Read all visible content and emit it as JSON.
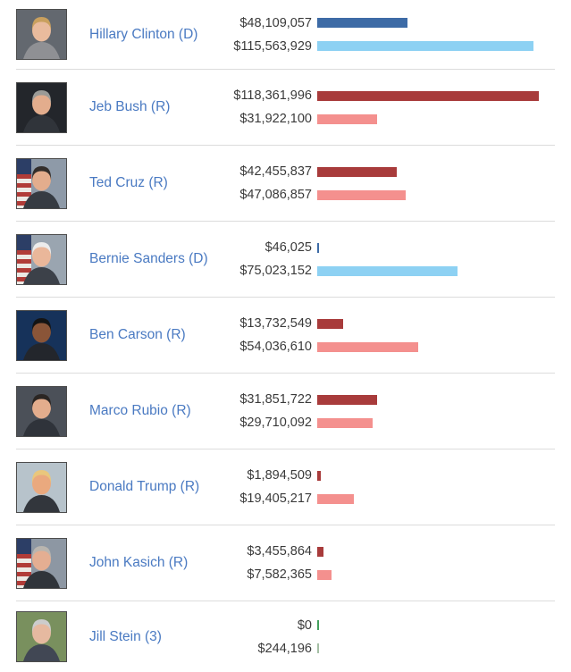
{
  "colors": {
    "link_blue": "#4a7ac2",
    "value_text": "#3a3a3a",
    "divider": "#dcdcdc",
    "dem_dark": "#3d6ba6",
    "dem_light": "#8dd1f3",
    "rep_dark": "#a83b3b",
    "rep_light": "#f4908e",
    "green_dark": "#42a05c",
    "green_light": "#a5bfa5"
  },
  "chart_data": {
    "type": "bar",
    "orientation": "horizontal",
    "categories": [
      "Hillary Clinton (D)",
      "Jeb Bush (R)",
      "Ted Cruz (R)",
      "Bernie Sanders (D)",
      "Ben Carson (R)",
      "Marco Rubio (R)",
      "Donald Trump (R)",
      "John Kasich (R)",
      "Jill Stein (3)"
    ],
    "series": [
      {
        "name": "top_bar_amount",
        "values": [
          48109057,
          118361996,
          42455837,
          46025,
          13732549,
          31851722,
          1894509,
          3455864,
          0
        ]
      },
      {
        "name": "bottom_bar_amount",
        "values": [
          115563929,
          31922100,
          47086857,
          75023152,
          54036610,
          29710092,
          19405217,
          7582365,
          244196
        ]
      }
    ],
    "title": "",
    "xlabel": "",
    "ylabel": "",
    "value_format": "USD with thousands separators",
    "color_coding": "Democrats blue (dark/light), Republicans red (dark/light), third party green (dark/light)",
    "grid": false,
    "legend": false
  },
  "money_race": {
    "rows": [
      {
        "candidate": "Hillary Clinton (D)",
        "amounts": [
          {
            "label": "$48,109,057",
            "value": 48109057,
            "color": "#3d6ba6"
          },
          {
            "label": "$115,563,929",
            "value": 115563929,
            "color": "#8dd1f3"
          }
        ],
        "avatar": {
          "bg": "#63686f",
          "hair": "#c9a05e",
          "skin": "#e9bb9d",
          "suit": "#8f9094",
          "flag": 0
        }
      },
      {
        "candidate": "Jeb Bush (R)",
        "amounts": [
          {
            "label": "$118,361,996",
            "value": 118361996,
            "color": "#a83b3b"
          },
          {
            "label": "$31,922,100",
            "value": 31922100,
            "color": "#f4908e"
          }
        ],
        "avatar": {
          "bg": "#23262b",
          "hair": "#9b9b97",
          "skin": "#e3ad8d",
          "suit": "#30343a",
          "flag": 0
        }
      },
      {
        "candidate": "Ted Cruz (R)",
        "amounts": [
          {
            "label": "$42,455,837",
            "value": 42455837,
            "color": "#a83b3b"
          },
          {
            "label": "$47,086,857",
            "value": 47086857,
            "color": "#f4908e"
          }
        ],
        "avatar": {
          "bg": "#8e9aa8",
          "hair": "#332e2b",
          "skin": "#e3ad8d",
          "suit": "#363b42",
          "flag": 1
        }
      },
      {
        "candidate": "Bernie Sanders (D)",
        "amounts": [
          {
            "label": "$46,025",
            "value": 46025,
            "color": "#3d6ba6"
          },
          {
            "label": "$75,023,152",
            "value": 75023152,
            "color": "#8dd1f3"
          }
        ],
        "avatar": {
          "bg": "#9aa5b0",
          "hair": "#ececec",
          "skin": "#eab79a",
          "suit": "#3c4149",
          "flag": 1
        }
      },
      {
        "candidate": "Ben Carson (R)",
        "amounts": [
          {
            "label": "$13,732,549",
            "value": 13732549,
            "color": "#a83b3b"
          },
          {
            "label": "$54,036,610",
            "value": 54036610,
            "color": "#f4908e"
          }
        ],
        "avatar": {
          "bg": "#16325a",
          "hair": "#141414",
          "skin": "#8a5538",
          "suit": "#23262c",
          "flag": 0
        }
      },
      {
        "candidate": "Marco Rubio (R)",
        "amounts": [
          {
            "label": "$31,851,722",
            "value": 31851722,
            "color": "#a83b3b"
          },
          {
            "label": "$29,710,092",
            "value": 29710092,
            "color": "#f4908e"
          }
        ],
        "avatar": {
          "bg": "#4b5058",
          "hair": "#2b2623",
          "skin": "#e3ad8d",
          "suit": "#2f333a",
          "flag": 0
        }
      },
      {
        "candidate": "Donald Trump (R)",
        "amounts": [
          {
            "label": "$1,894,509",
            "value": 1894509,
            "color": "#a83b3b"
          },
          {
            "label": "$19,405,217",
            "value": 19405217,
            "color": "#f4908e"
          }
        ],
        "avatar": {
          "bg": "#b7c3cb",
          "hair": "#e9c77c",
          "skin": "#eaa97e",
          "suit": "#32363c",
          "flag": 0
        }
      },
      {
        "candidate": "John Kasich (R)",
        "amounts": [
          {
            "label": "$3,455,864",
            "value": 3455864,
            "color": "#a83b3b"
          },
          {
            "label": "$7,582,365",
            "value": 7582365,
            "color": "#f4908e"
          }
        ],
        "avatar": {
          "bg": "#8d97a3",
          "hair": "#b9b5af",
          "skin": "#e4ae92",
          "suit": "#30343a",
          "flag": 1
        }
      },
      {
        "candidate": "Jill Stein (3)",
        "amounts": [
          {
            "label": "$0",
            "value": 0,
            "color": "#42a05c"
          },
          {
            "label": "$244,196",
            "value": 244196,
            "color": "#a5bfa5"
          }
        ],
        "avatar": {
          "bg": "#79905e",
          "hair": "#cccccc",
          "skin": "#e6b9a0",
          "suit": "#414754",
          "flag": 0
        }
      }
    ]
  }
}
